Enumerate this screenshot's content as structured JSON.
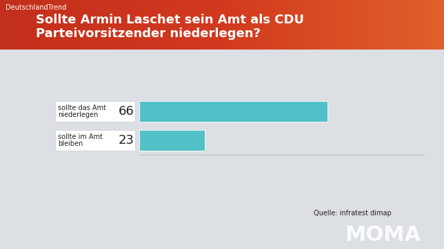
{
  "chart_data": {
    "type": "bar",
    "orientation": "horizontal",
    "header": "DeutschlandTrend",
    "title": "Sollte Armin Laschet sein Amt als CDU Parteivorsitzender niederlegen?",
    "categories": [
      "sollte das Amt niederlegen",
      "sollte im Amt bleiben"
    ],
    "values": [
      66,
      23
    ],
    "color": "#52c0c7",
    "data_labels": true,
    "tick_labels": false,
    "xlim": [
      0,
      100
    ],
    "xticks": [],
    "source": "Quelle: infratest dimap",
    "logo": "MOMA"
  }
}
